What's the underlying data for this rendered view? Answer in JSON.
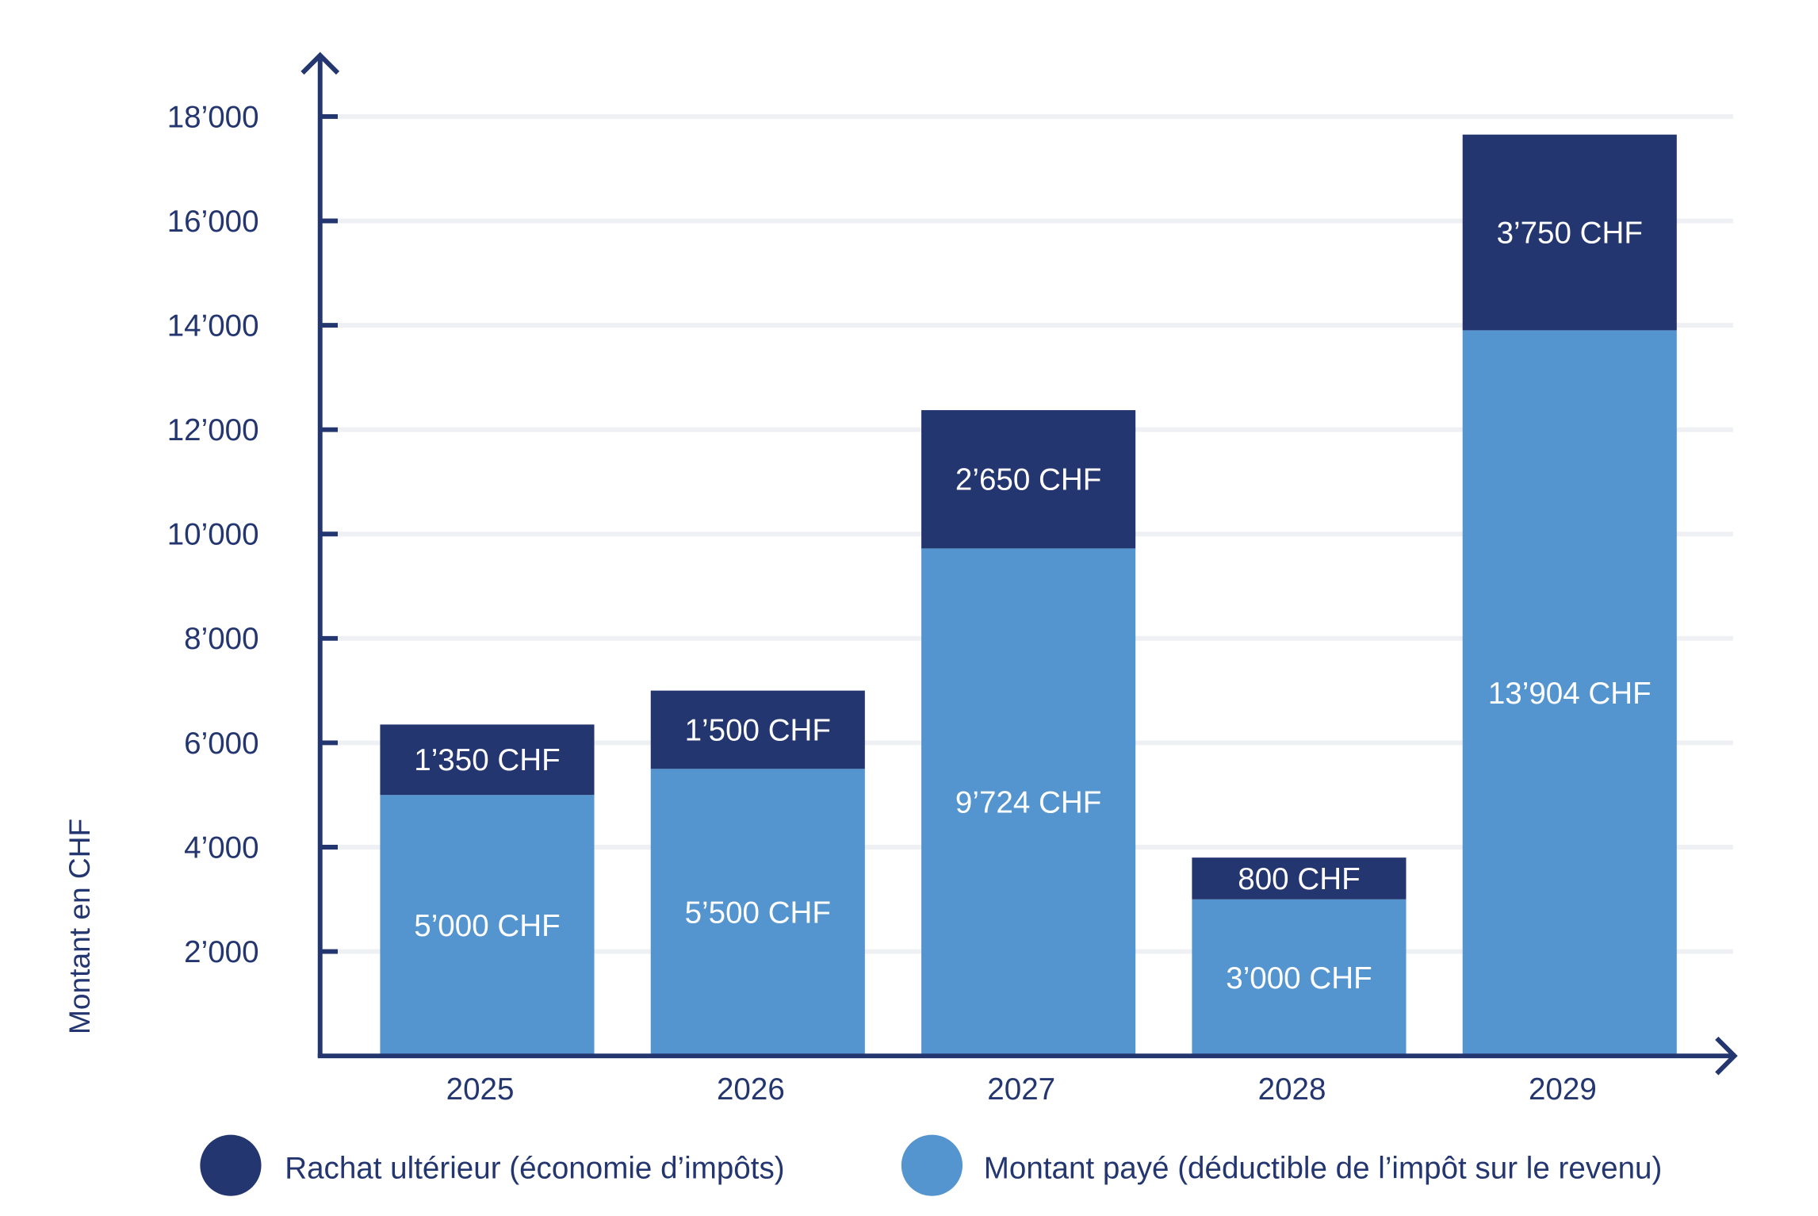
{
  "chart_data": {
    "type": "bar",
    "stacked": true,
    "categories": [
      "2025",
      "2026",
      "2027",
      "2028",
      "2029"
    ],
    "series": [
      {
        "name": "Montant payé (déductible de l’impôt sur le revenu)",
        "values": [
          5000,
          5500,
          9724,
          3000,
          13904
        ],
        "labels": [
          "5’000 CHF",
          "5’500 CHF",
          "9’724 CHF",
          "3’000 CHF",
          "13’904 CHF"
        ],
        "color": "#5495d0"
      },
      {
        "name": "Rachat ultérieur (économie d’impôts)",
        "values": [
          1350,
          1500,
          2650,
          800,
          3750
        ],
        "labels": [
          "1’350 CHF",
          "1’500 CHF",
          "2’650 CHF",
          "800 CHF",
          "3’750 CHF"
        ],
        "color": "#243670"
      }
    ],
    "title": "",
    "xlabel": "",
    "ylabel": "Montant en CHF",
    "ylim": [
      0,
      18000
    ],
    "yticks": [
      2000,
      4000,
      6000,
      8000,
      10000,
      12000,
      14000,
      16000,
      18000
    ],
    "ytick_labels": [
      "2’000",
      "4’000",
      "6’000",
      "8’000",
      "10’000",
      "12’000",
      "14’000",
      "16’000",
      "18’000"
    ],
    "grid": true,
    "legend_position": "bottom",
    "axis_color": "#243670",
    "grid_color": "#eef0f3"
  }
}
